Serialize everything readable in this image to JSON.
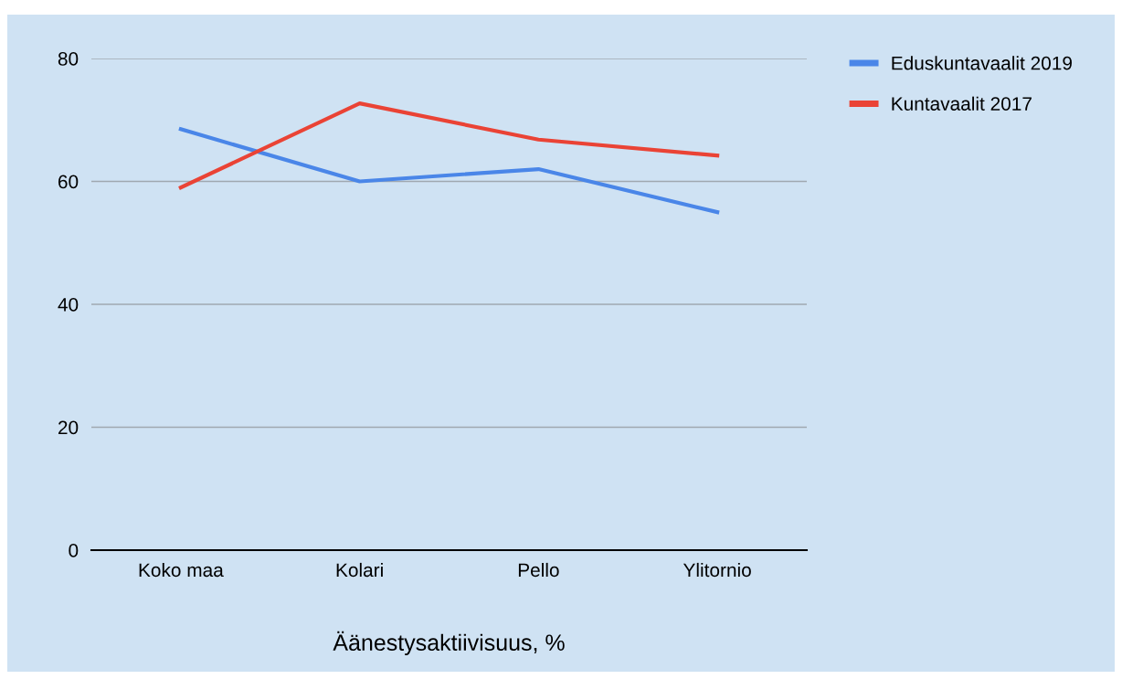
{
  "chart_data": {
    "type": "line",
    "xlabel": "Äänestysaktiivisuus, %",
    "categories": [
      "Koko maa",
      "Kolari",
      "Pello",
      "Ylitornio"
    ],
    "series": [
      {
        "name": "Eduskuntavaalit 2019",
        "color": "#4a86e8",
        "values": [
          68.5,
          60,
          62,
          55
        ]
      },
      {
        "name": "Kuntavaalit 2017",
        "color": "#ea4335",
        "values": [
          59,
          72.7,
          66.8,
          64.2
        ]
      }
    ],
    "ylim": [
      0,
      80
    ],
    "yticks": [
      0,
      20,
      40,
      60,
      80
    ],
    "grid": "y",
    "legend": "top right",
    "marker": "none",
    "line_style": "solid"
  }
}
